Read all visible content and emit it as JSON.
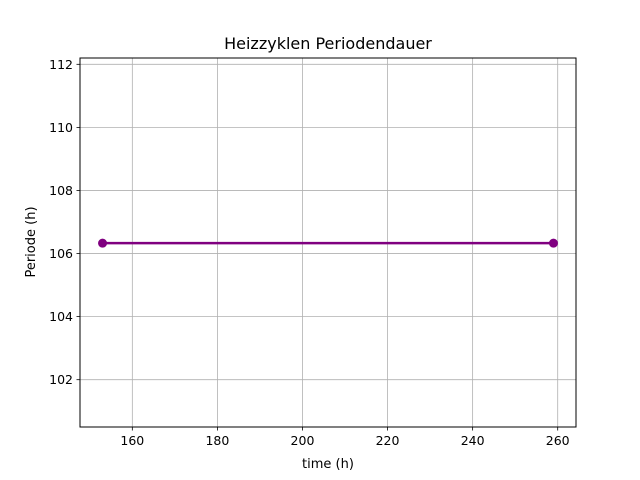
{
  "chart_data": {
    "type": "line",
    "title": "Heizzyklen Periodendauer",
    "xlabel": "time (h)",
    "ylabel": "Periode (h)",
    "xlim": [
      147.7,
      264.3
    ],
    "ylim": [
      100.5,
      112.2
    ],
    "xticks": [
      160,
      180,
      200,
      220,
      240,
      260
    ],
    "yticks": [
      102,
      104,
      106,
      108,
      110,
      112
    ],
    "grid": true,
    "series": [
      {
        "color": "#800080",
        "marker": "circle",
        "x": [
          153,
          259
        ],
        "y": [
          106.33,
          106.33
        ]
      }
    ]
  }
}
